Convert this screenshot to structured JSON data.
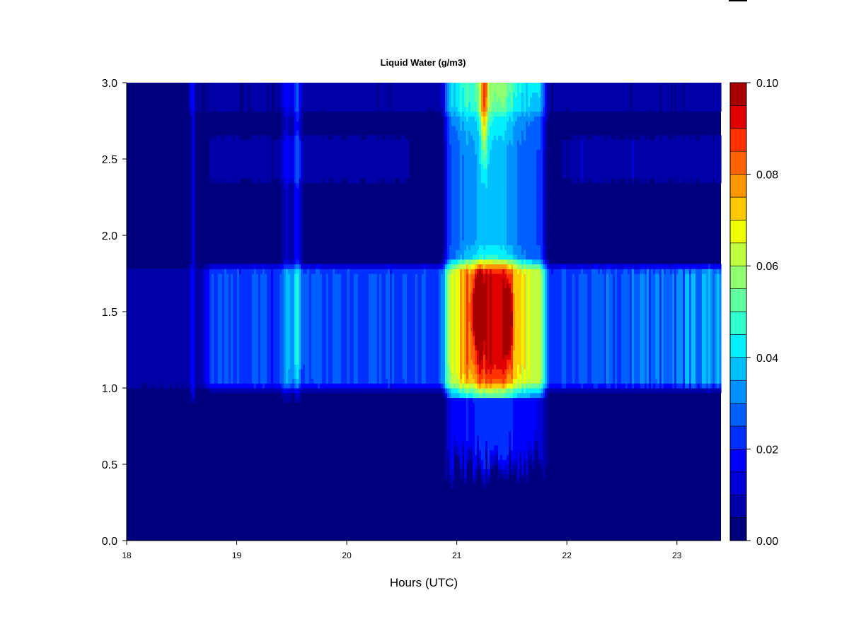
{
  "chart_data": {
    "type": "heatmap",
    "title": "Liquid Water (g/m3)",
    "xlabel": "Hours (UTC)",
    "ylabel": "",
    "xlim": [
      18,
      23.4
    ],
    "ylim": [
      0,
      3.0
    ],
    "x_ticks": [
      "18",
      "19",
      "20",
      "21",
      "22",
      "23"
    ],
    "y_ticks": [
      "0.0",
      "0.5",
      "1.0",
      "1.5",
      "2.0",
      "2.5",
      "3.0"
    ],
    "colorbar": {
      "range": [
        0,
        0.1
      ],
      "step": 0.005,
      "tick_labels": [
        "0.00",
        "0.02",
        "0.04",
        "0.06",
        "0.08",
        "0.10"
      ],
      "colors": [
        "#00007f",
        "#0000a8",
        "#0000d9",
        "#0000ff",
        "#0030ff",
        "#0060ff",
        "#0090ff",
        "#00c0ff",
        "#00f0ff",
        "#30ffd0",
        "#60ffa0",
        "#90ff70",
        "#c0ff40",
        "#f0ff00",
        "#ffc800",
        "#ff9600",
        "#ff6400",
        "#ff3200",
        "#e00000",
        "#a80000"
      ]
    },
    "structure": {
      "low_layer_km": [
        1.0,
        1.8
      ],
      "mid_layer_km": [
        2.35,
        2.65
      ],
      "top_layer_km": [
        2.8,
        3.0
      ],
      "cloud_core_hours": [
        20.9,
        21.8
      ],
      "cloud_core_extends_to_km": 0.25,
      "peak_value": 0.1,
      "peak_location": {
        "hour": 21.2,
        "height_km": 1.5
      },
      "secondary_peak": {
        "hour": 21.47,
        "height_km": 1.45
      }
    }
  },
  "legend": {
    "placement": "right"
  }
}
